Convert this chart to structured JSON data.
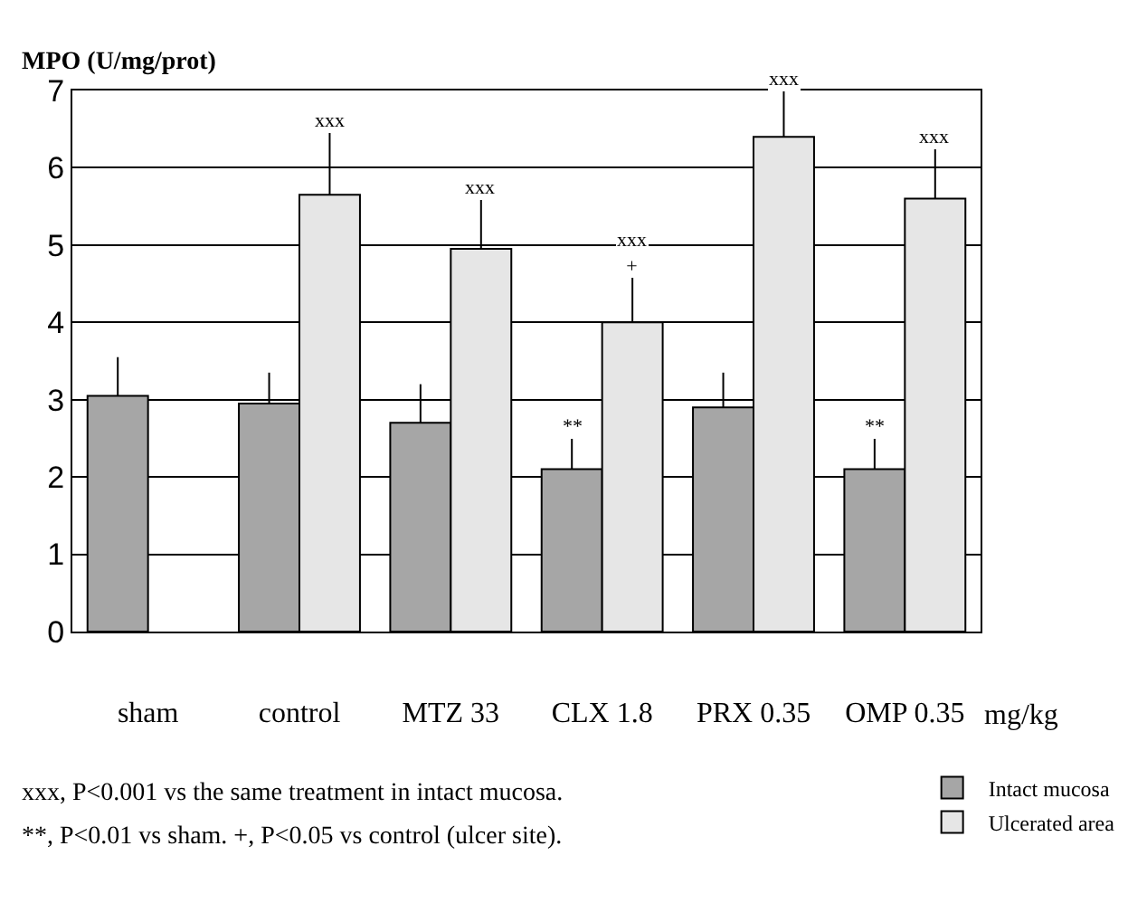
{
  "chart_data": {
    "type": "bar",
    "ylabel": "MPO (U/mg/prot)",
    "xlabel": "mg/kg",
    "categories": [
      "sham",
      "control",
      "MTZ 33",
      "CLX 1.8",
      "PRX 0.35",
      "OMP 0.35"
    ],
    "series": [
      {
        "name": "Intact mucosa",
        "color": "#a6a6a6",
        "values": [
          3.05,
          2.95,
          2.7,
          2.1,
          2.9,
          2.1
        ],
        "value_labels": [
          null,
          null,
          null,
          "**",
          null,
          "**"
        ],
        "errors": [
          [
            3.05,
            3.55
          ],
          [
            2.95,
            3.35
          ],
          [
            2.7,
            3.2
          ],
          [
            2.1,
            2.5
          ],
          [
            2.9,
            3.35
          ],
          [
            2.1,
            2.5
          ]
        ]
      },
      {
        "name": "Ulcerated area",
        "color": "#e6e6e6",
        "values": [
          null,
          5.65,
          4.95,
          4.0,
          6.4,
          5.6
        ],
        "value_labels": [
          null,
          "xxx",
          "xxx",
          "xxx\n+",
          "xxx",
          "xxx"
        ],
        "errors": [
          null,
          [
            5.65,
            6.45
          ],
          [
            4.95,
            5.6
          ],
          [
            4.0,
            4.6
          ],
          [
            6.4,
            7.0
          ],
          [
            5.6,
            6.25
          ]
        ]
      }
    ],
    "ylim": [
      0,
      7
    ],
    "yticks": [
      0,
      1,
      2,
      3,
      4,
      5,
      6,
      7
    ],
    "grid": "y",
    "legend": "bottom right",
    "annotations": [
      "xxx, P<0.001 vs the same treatment in intact mucosa.",
      "**, P<0.01 vs sham. +, P<0.05 vs control (ulcer site)."
    ]
  }
}
